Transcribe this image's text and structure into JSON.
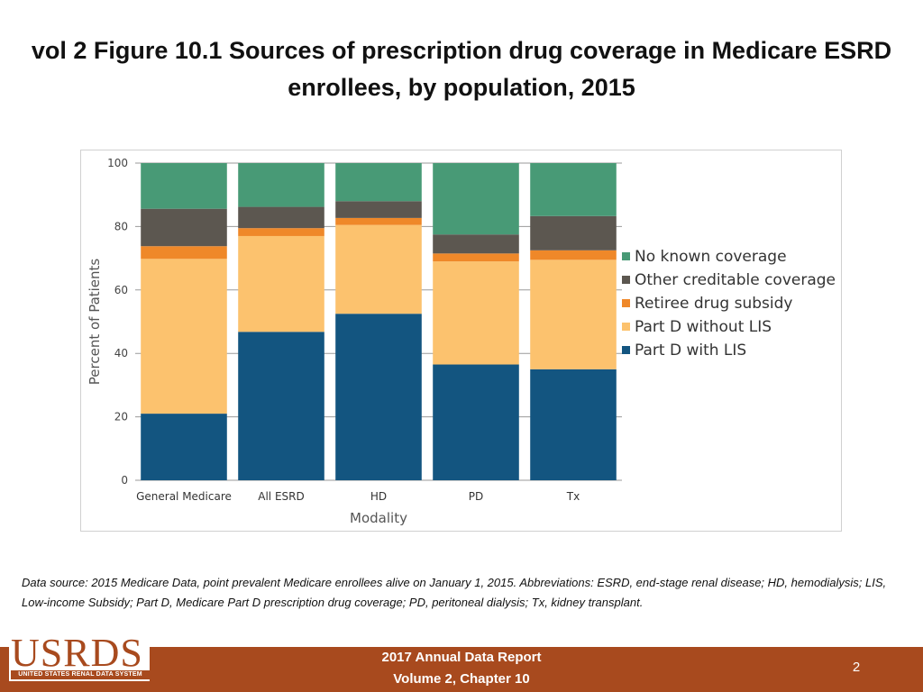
{
  "title": "vol 2 Figure 10.1 Sources of prescription drug coverage in Medicare ESRD enrollees, by population, 2015",
  "chart_data": {
    "type": "bar",
    "stacked": true,
    "categories": [
      "General Medicare",
      "All ESRD",
      "HD",
      "PD",
      "Tx"
    ],
    "series": [
      {
        "name": "Part D with LIS",
        "color": "#135580",
        "values": [
          21,
          46.8,
          52.5,
          36.5,
          35
        ]
      },
      {
        "name": "Part D without LIS",
        "color": "#fcc26e",
        "values": [
          48.8,
          30.2,
          28,
          32.5,
          34.5
        ]
      },
      {
        "name": "Retiree drug subsidy",
        "color": "#ef8829",
        "values": [
          4,
          2.5,
          2.2,
          2.5,
          3
        ]
      },
      {
        "name": "Other creditable coverage",
        "color": "#5c5750",
        "values": [
          11.8,
          6.7,
          5.3,
          6,
          10.8
        ]
      },
      {
        "name": "No known coverage",
        "color": "#489a76",
        "values": [
          14.4,
          13.8,
          12,
          22.5,
          16.7
        ]
      }
    ],
    "legend_order": [
      "No known coverage",
      "Other creditable coverage",
      "Retiree drug subsidy",
      "Part D without LIS",
      "Part D with LIS"
    ],
    "title": "",
    "xlabel": "Modality",
    "ylabel": "Percent of Patients",
    "ylim": [
      0,
      100
    ],
    "yticks": [
      0,
      20,
      40,
      60,
      80,
      100
    ],
    "grid": true,
    "legend_position": "right"
  },
  "source_note": "Data source: 2015 Medicare Data, point prevalent Medicare enrollees alive on January 1, 2015. Abbreviations: ESRD, end-stage renal disease; HD, hemodialysis; LIS, Low-income Subsidy; Part D, Medicare Part D prescription drug coverage; PD, peritoneal dialysis; Tx, kidney transplant.",
  "footer": {
    "logo": "USRDS",
    "logo_subtitle": "UNITED STATES RENAL DATA SYSTEM",
    "line1": "2017 Annual Data Report",
    "line2": "Volume 2, Chapter 10",
    "page_number": "2"
  }
}
